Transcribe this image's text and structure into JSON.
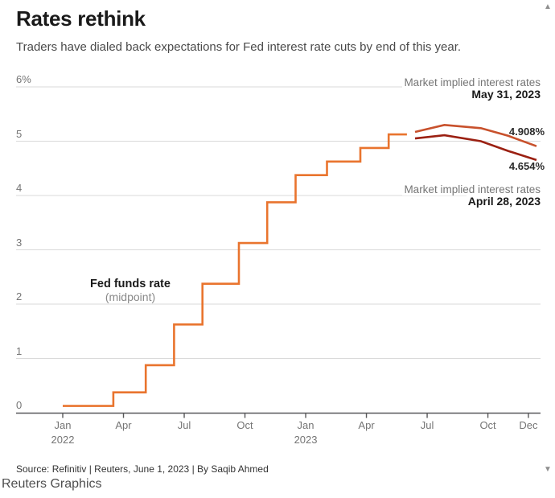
{
  "header": {
    "title": "Rates rethink",
    "subtitle": "Traders have dialed back expectations for Fed interest rate cuts by end of this year."
  },
  "chart_data": {
    "type": "line",
    "x_axis": {
      "unit": "months since Jan 2022",
      "range_months": [
        0,
        24
      ],
      "ticks": [
        {
          "m": 0,
          "label": "Jan",
          "year": "2022"
        },
        {
          "m": 3,
          "label": "Apr"
        },
        {
          "m": 6,
          "label": "Jul"
        },
        {
          "m": 9,
          "label": "Oct"
        },
        {
          "m": 12,
          "label": "Jan",
          "year": "2023"
        },
        {
          "m": 15,
          "label": "Apr"
        },
        {
          "m": 18,
          "label": "Jul"
        },
        {
          "m": 21,
          "label": "Oct"
        },
        {
          "m": 23,
          "label": "Dec"
        }
      ]
    },
    "y_axis": {
      "min": 0,
      "max": 6,
      "gridline_values": [
        6,
        5,
        4,
        3,
        2,
        1
      ],
      "labels": [
        {
          "v": 6,
          "text": "6%"
        },
        {
          "v": 5,
          "text": "5"
        },
        {
          "v": 4,
          "text": "4"
        },
        {
          "v": 3,
          "text": "3"
        },
        {
          "v": 2,
          "text": "2"
        },
        {
          "v": 1,
          "text": "1"
        },
        {
          "v": 0,
          "text": "0"
        }
      ],
      "grid_on": true
    },
    "legend_position": "annotations-on-chart",
    "series": [
      {
        "name": "Fed funds rate (midpoint)",
        "style": "step",
        "color": "#e9742e",
        "points": [
          {
            "m": 0.0,
            "v": 0.125
          },
          {
            "m": 2.5,
            "v": 0.375
          },
          {
            "m": 4.1,
            "v": 0.875
          },
          {
            "m": 5.5,
            "v": 1.625
          },
          {
            "m": 6.9,
            "v": 2.375
          },
          {
            "m": 8.7,
            "v": 3.125
          },
          {
            "m": 10.1,
            "v": 3.875
          },
          {
            "m": 11.5,
            "v": 4.375
          },
          {
            "m": 13.05,
            "v": 4.625
          },
          {
            "m": 14.7,
            "v": 4.875
          },
          {
            "m": 16.1,
            "v": 5.125
          }
        ],
        "end_m": 17.0
      },
      {
        "name": "Market implied interest rates May 31, 2023",
        "style": "line",
        "color": "#c8512c",
        "points": [
          {
            "m": 17.4,
            "v": 5.17
          },
          {
            "m": 18.85,
            "v": 5.3
          },
          {
            "m": 20.65,
            "v": 5.24
          },
          {
            "m": 22.0,
            "v": 5.1
          },
          {
            "m": 23.4,
            "v": 4.908
          }
        ],
        "end_label": "4.908%"
      },
      {
        "name": "Market implied interest rates April 28, 2023",
        "style": "line",
        "color": "#9b2012",
        "points": [
          {
            "m": 17.4,
            "v": 5.05
          },
          {
            "m": 18.85,
            "v": 5.11
          },
          {
            "m": 20.65,
            "v": 5.0
          },
          {
            "m": 22.0,
            "v": 4.82
          },
          {
            "m": 23.4,
            "v": 4.654
          }
        ],
        "end_label": "4.654%"
      }
    ]
  },
  "annotations": {
    "may": {
      "line1": "Market implied interest rates",
      "line2": "May 31, 2023"
    },
    "apr": {
      "line1": "Market implied interest rates",
      "line2": "April 28, 2023"
    },
    "fed": {
      "line1": "Fed funds rate",
      "line2": "(midpoint)"
    }
  },
  "footer": {
    "source": "Source: Refinitiv | Reuters, June 1, 2023 | By Saqib Ahmed",
    "brand": "Reuters Graphics"
  },
  "scrollbar": {
    "up_icon": "▲",
    "down_icon": "▼"
  },
  "colors": {
    "gridline": "#d9d9d9",
    "axis": "#58585a",
    "fed_funds": "#e9742e",
    "may31_line": "#c8512c",
    "apr28_line": "#9b2012"
  }
}
